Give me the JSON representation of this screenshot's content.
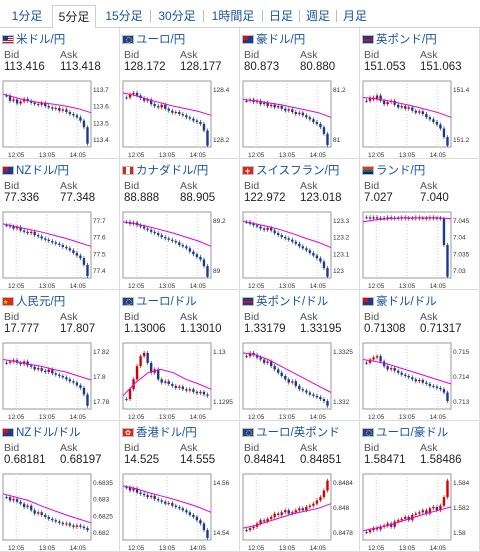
{
  "tabs": [
    {
      "label": "1分足",
      "active": false
    },
    {
      "label": "5分足",
      "active": true
    },
    {
      "label": "15分足",
      "active": false
    },
    {
      "label": "30分足",
      "active": false
    },
    {
      "label": "1時間足",
      "active": false
    },
    {
      "label": "日足",
      "active": false
    },
    {
      "label": "週足",
      "active": false
    },
    {
      "label": "月足",
      "active": false
    }
  ],
  "labels": {
    "bid": "Bid",
    "ask": "Ask"
  },
  "colors": {
    "up": "#d40000",
    "down": "#1b3a8a",
    "ma": "#e600e6",
    "link": "#1a53a3",
    "grid": "#cccccc"
  },
  "cards": [
    {
      "pair": "米ドル/円",
      "flag": "us",
      "bid": "113.416",
      "ask": "113.418",
      "ticks": [
        "113.7",
        "113.6",
        "113.5",
        "113.4"
      ],
      "xlabels": [
        "12:05",
        "13:05",
        "14:05"
      ],
      "series": [
        0.22,
        0.3,
        0.28,
        0.34,
        0.31,
        0.27,
        0.3,
        0.33,
        0.35,
        0.36,
        0.33,
        0.38,
        0.4,
        0.42,
        0.41,
        0.45,
        0.43,
        0.47,
        0.5,
        0.52,
        0.55,
        0.6,
        0.7,
        0.95
      ],
      "ma": [
        0.2,
        0.25,
        0.3,
        0.33,
        0.35,
        0.38,
        0.42,
        0.48
      ]
    },
    {
      "pair": "ユーロ/円",
      "flag": "eu",
      "bid": "128.172",
      "ask": "128.177",
      "ticks": [
        "128.4",
        "128.2"
      ],
      "xlabels": [
        "12:05",
        "13:05",
        "14:05"
      ],
      "series": [
        0.25,
        0.2,
        0.18,
        0.22,
        0.26,
        0.3,
        0.28,
        0.35,
        0.38,
        0.4,
        0.36,
        0.42,
        0.45,
        0.48,
        0.47,
        0.5,
        0.52,
        0.55,
        0.57,
        0.6,
        0.62,
        0.65,
        0.75,
        0.98
      ],
      "ma": [
        0.18,
        0.22,
        0.28,
        0.33,
        0.38,
        0.42,
        0.46,
        0.52
      ]
    },
    {
      "pair": "豪ドル/円",
      "flag": "au",
      "bid": "80.873",
      "ask": "80.880",
      "ticks": [
        "81.2",
        "81"
      ],
      "xlabels": [
        "12:05",
        "13:05",
        "14:05"
      ],
      "series": [
        0.3,
        0.28,
        0.32,
        0.3,
        0.35,
        0.33,
        0.38,
        0.36,
        0.4,
        0.38,
        0.42,
        0.45,
        0.43,
        0.47,
        0.5,
        0.48,
        0.52,
        0.55,
        0.58,
        0.62,
        0.65,
        0.7,
        0.8,
        0.97
      ],
      "ma": [
        0.28,
        0.3,
        0.33,
        0.36,
        0.4,
        0.44,
        0.48,
        0.55
      ]
    },
    {
      "pair": "英ポンド/円",
      "flag": "gb",
      "bid": "151.053",
      "ask": "151.063",
      "ticks": [
        "151.4",
        "151.2"
      ],
      "xlabels": [
        "12:05",
        "13:05",
        "14:05"
      ],
      "series": [
        0.3,
        0.25,
        0.28,
        0.22,
        0.3,
        0.35,
        0.32,
        0.3,
        0.36,
        0.4,
        0.38,
        0.42,
        0.4,
        0.45,
        0.48,
        0.46,
        0.5,
        0.55,
        0.58,
        0.62,
        0.66,
        0.72,
        0.85,
        0.98
      ],
      "ma": [
        0.25,
        0.27,
        0.3,
        0.34,
        0.38,
        0.43,
        0.48,
        0.55
      ]
    },
    {
      "pair": "NZドル/円",
      "flag": "nz",
      "bid": "77.336",
      "ask": "77.348",
      "ticks": [
        "77.7",
        "77.6",
        "77.5",
        "77.4"
      ],
      "xlabels": [
        "12:05",
        "13:05",
        "14:05"
      ],
      "series": [
        0.2,
        0.22,
        0.25,
        0.23,
        0.28,
        0.3,
        0.32,
        0.3,
        0.35,
        0.37,
        0.4,
        0.42,
        0.44,
        0.46,
        0.48,
        0.5,
        0.53,
        0.55,
        0.58,
        0.62,
        0.66,
        0.7,
        0.8,
        0.97
      ],
      "ma": [
        0.18,
        0.22,
        0.26,
        0.3,
        0.35,
        0.4,
        0.46,
        0.52
      ]
    },
    {
      "pair": "カナダドル/円",
      "flag": "ca",
      "bid": "88.888",
      "ask": "88.905",
      "ticks": [
        "89.2",
        "89"
      ],
      "xlabels": [
        "12:05",
        "13:05",
        "14:05"
      ],
      "series": [
        0.15,
        0.18,
        0.16,
        0.2,
        0.22,
        0.25,
        0.27,
        0.3,
        0.32,
        0.35,
        0.38,
        0.4,
        0.42,
        0.44,
        0.46,
        0.5,
        0.52,
        0.55,
        0.6,
        0.64,
        0.68,
        0.72,
        0.82,
        0.98
      ],
      "ma": [
        0.15,
        0.18,
        0.22,
        0.27,
        0.32,
        0.38,
        0.44,
        0.52
      ]
    },
    {
      "pair": "スイスフラン/円",
      "flag": "ch",
      "bid": "122.972",
      "ask": "123.018",
      "ticks": [
        "123.3",
        "123.2",
        "123.1",
        "123"
      ],
      "xlabels": [
        "12:05",
        "13:05",
        "14:05"
      ],
      "series": [
        0.15,
        0.18,
        0.2,
        0.22,
        0.25,
        0.27,
        0.24,
        0.28,
        0.32,
        0.35,
        0.38,
        0.4,
        0.42,
        0.45,
        0.48,
        0.52,
        0.55,
        0.58,
        0.62,
        0.66,
        0.7,
        0.75,
        0.85,
        0.98
      ],
      "ma": [
        0.14,
        0.18,
        0.22,
        0.27,
        0.33,
        0.4,
        0.46,
        0.54
      ]
    },
    {
      "pair": "ランド/円",
      "flag": "za",
      "bid": "7.027",
      "ask": "7.040",
      "ticks": [
        "7.045",
        "7.04",
        "7.035",
        "7.03"
      ],
      "xlabels": [
        "12:05",
        "13:05",
        "14:05"
      ],
      "series": [
        0.08,
        0.1,
        0.08,
        0.1,
        0.09,
        0.1,
        0.08,
        0.1,
        0.09,
        0.1,
        0.08,
        0.1,
        0.09,
        0.1,
        0.08,
        0.1,
        0.09,
        0.1,
        0.08,
        0.1,
        0.09,
        0.1,
        0.5,
        0.98
      ],
      "ma": [
        0.15,
        0.12,
        0.1,
        0.09,
        0.09,
        0.09,
        0.09,
        0.1
      ]
    },
    {
      "pair": "人民元/円",
      "flag": "cn",
      "bid": "17.777",
      "ask": "17.807",
      "ticks": [
        "17.82",
        "17.8",
        "17.78"
      ],
      "xlabels": [
        "12:05",
        "13:05",
        "14:05"
      ],
      "series": [
        0.3,
        0.28,
        0.26,
        0.3,
        0.32,
        0.28,
        0.34,
        0.36,
        0.4,
        0.38,
        0.42,
        0.44,
        0.4,
        0.46,
        0.48,
        0.5,
        0.52,
        0.55,
        0.58,
        0.6,
        0.64,
        0.68,
        0.78,
        0.95
      ],
      "ma": [
        0.25,
        0.28,
        0.32,
        0.35,
        0.4,
        0.44,
        0.5,
        0.56
      ]
    },
    {
      "pair": "ユーロ/ドル",
      "flag": "eu",
      "bid": "1.13006",
      "ask": "1.13010",
      "ticks": [
        "1.13",
        "1.1295"
      ],
      "xlabels": [
        "12:05",
        "13:05",
        "14:05"
      ],
      "series": [
        0.85,
        0.7,
        0.55,
        0.35,
        0.2,
        0.15,
        0.3,
        0.45,
        0.4,
        0.55,
        0.6,
        0.58,
        0.62,
        0.65,
        0.68,
        0.66,
        0.7,
        0.72,
        0.7,
        0.74,
        0.76,
        0.74,
        0.78,
        0.8
      ],
      "ma": [
        0.8,
        0.6,
        0.45,
        0.4,
        0.45,
        0.55,
        0.62,
        0.7
      ]
    },
    {
      "pair": "英ポンド/ドル",
      "flag": "gb",
      "bid": "1.33179",
      "ask": "1.33195",
      "ticks": [
        "1.3325",
        "1.332"
      ],
      "xlabels": [
        "12:05",
        "13:05",
        "14:05"
      ],
      "series": [
        0.2,
        0.15,
        0.18,
        0.22,
        0.25,
        0.3,
        0.28,
        0.35,
        0.4,
        0.45,
        0.5,
        0.55,
        0.6,
        0.58,
        0.65,
        0.7,
        0.72,
        0.75,
        0.78,
        0.8,
        0.82,
        0.85,
        0.88,
        0.95
      ],
      "ma": [
        0.15,
        0.18,
        0.25,
        0.35,
        0.45,
        0.55,
        0.65,
        0.75
      ]
    },
    {
      "pair": "豪ドル/ドル",
      "flag": "au",
      "bid": "0.71308",
      "ask": "0.71317",
      "ticks": [
        "0.715",
        "0.714",
        "0.713"
      ],
      "xlabels": [
        "12:05",
        "13:05",
        "14:05"
      ],
      "series": [
        0.3,
        0.25,
        0.22,
        0.2,
        0.28,
        0.35,
        0.4,
        0.38,
        0.42,
        0.45,
        0.48,
        0.5,
        0.52,
        0.55,
        0.58,
        0.56,
        0.6,
        0.62,
        0.65,
        0.66,
        0.68,
        0.7,
        0.75,
        0.88
      ],
      "ma": [
        0.25,
        0.28,
        0.32,
        0.38,
        0.44,
        0.5,
        0.56,
        0.62
      ]
    },
    {
      "pair": "NZドル/ドル",
      "flag": "nz",
      "bid": "0.68181",
      "ask": "0.68197",
      "ticks": [
        "0.6835",
        "0.683",
        "0.6825",
        "0.682"
      ],
      "xlabels": [
        "12:05",
        "13:05",
        "14:05"
      ],
      "series": [
        0.35,
        0.4,
        0.38,
        0.42,
        0.45,
        0.5,
        0.48,
        0.55,
        0.6,
        0.58,
        0.62,
        0.65,
        0.68,
        0.7,
        0.72,
        0.74,
        0.76,
        0.75,
        0.78,
        0.8,
        0.78,
        0.8,
        0.82,
        0.85
      ],
      "ma": [
        0.3,
        0.35,
        0.4,
        0.48,
        0.55,
        0.62,
        0.68,
        0.74
      ]
    },
    {
      "pair": "香港ドル/円",
      "flag": "hk",
      "bid": "14.525",
      "ask": "14.555",
      "ticks": [
        "14.56",
        "14.54"
      ],
      "xlabels": [
        "12:05",
        "13:05",
        "14:05"
      ],
      "series": [
        0.2,
        0.25,
        0.22,
        0.28,
        0.3,
        0.32,
        0.35,
        0.33,
        0.38,
        0.4,
        0.42,
        0.45,
        0.44,
        0.48,
        0.5,
        0.52,
        0.55,
        0.58,
        0.62,
        0.65,
        0.7,
        0.75,
        0.85,
        0.97
      ],
      "ma": [
        0.18,
        0.22,
        0.28,
        0.33,
        0.38,
        0.44,
        0.5,
        0.58
      ]
    },
    {
      "pair": "ユーロ/英ポンド",
      "flag": "eu",
      "bid": "0.84841",
      "ask": "0.84851",
      "ticks": [
        "0.8484",
        "0.848",
        "0.8478"
      ],
      "xlabels": [
        "12:05",
        "13:05",
        "14:05"
      ],
      "series": [
        0.85,
        0.82,
        0.8,
        0.75,
        0.7,
        0.72,
        0.68,
        0.65,
        0.6,
        0.62,
        0.58,
        0.55,
        0.6,
        0.58,
        0.55,
        0.52,
        0.55,
        0.5,
        0.48,
        0.45,
        0.4,
        0.35,
        0.25,
        0.1
      ],
      "ma": [
        0.82,
        0.78,
        0.72,
        0.66,
        0.6,
        0.56,
        0.52,
        0.45
      ]
    },
    {
      "pair": "ユーロ/豪ドル",
      "flag": "eu",
      "bid": "1.58471",
      "ask": "1.58486",
      "ticks": [
        "1.584",
        "1.582",
        "1.58"
      ],
      "xlabels": [
        "12:05",
        "13:05",
        "14:05"
      ],
      "series": [
        0.88,
        0.85,
        0.82,
        0.84,
        0.8,
        0.78,
        0.75,
        0.8,
        0.72,
        0.7,
        0.68,
        0.65,
        0.7,
        0.62,
        0.6,
        0.58,
        0.55,
        0.6,
        0.52,
        0.5,
        0.55,
        0.48,
        0.35,
        0.1
      ],
      "ma": [
        0.86,
        0.82,
        0.78,
        0.72,
        0.66,
        0.6,
        0.55,
        0.5
      ]
    }
  ]
}
